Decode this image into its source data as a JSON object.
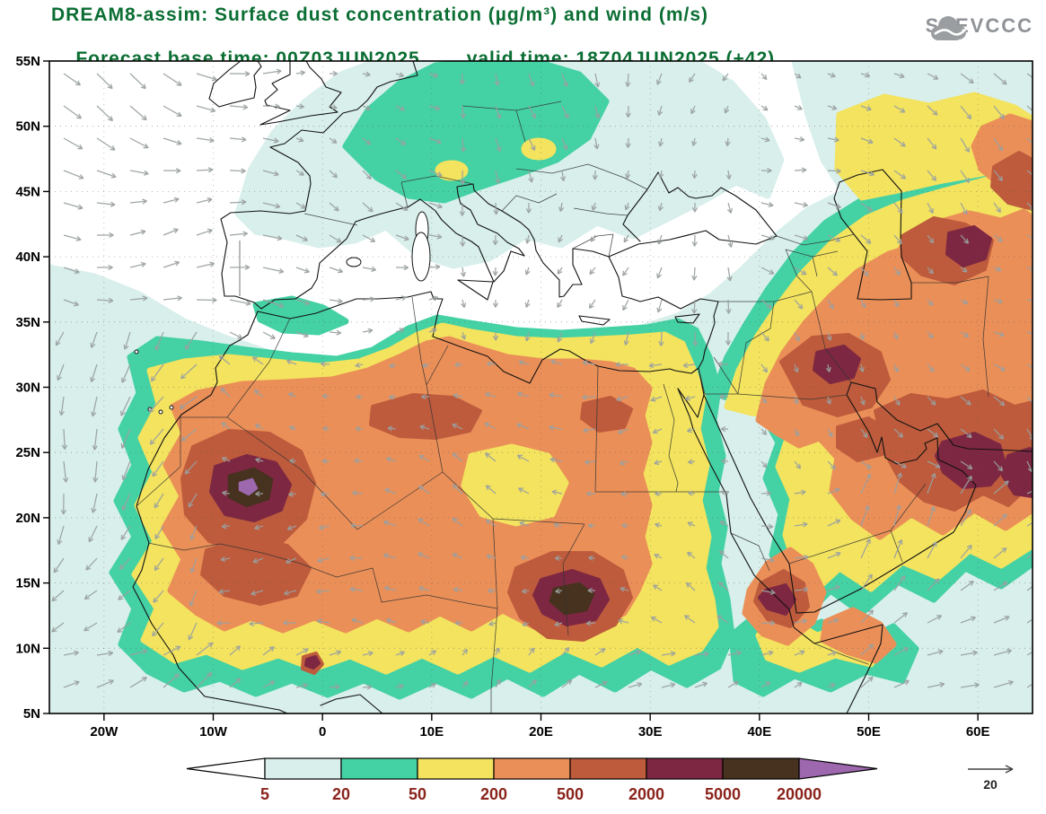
{
  "header": {
    "title": "DREAM8-assim: Surface dust concentration (µg/m³) and wind (m/s)",
    "base_time_label": "Forecast base time: 00Z03JUN2025",
    "valid_time_label": "valid time: 18Z04JUN2025 (+42)",
    "title_color": "#0b6e33"
  },
  "logo": {
    "text": "SEEVCCC"
  },
  "axes": {
    "lat_labels": [
      "55N",
      "50N",
      "45N",
      "40N",
      "35N",
      "30N",
      "25N",
      "20N",
      "15N",
      "10N",
      "5N"
    ],
    "lon_labels": [
      "20W",
      "10W",
      "0",
      "10E",
      "20E",
      "30E",
      "40E",
      "50E",
      "60E"
    ]
  },
  "colorbar": {
    "boundary_labels": [
      "5",
      "20",
      "50",
      "200",
      "500",
      "2000",
      "5000",
      "20000"
    ],
    "cell_colors": [
      "#ffffff",
      "#d8efeb",
      "#44d1a4",
      "#f3e35e",
      "#eb8f58",
      "#bd5b3c",
      "#7d2742",
      "#46321e",
      "#9d68ae"
    ],
    "label_color": "#8b241c"
  },
  "wind_reference": {
    "value": "20"
  },
  "chart_data": {
    "type": "heatmap",
    "title": "DREAM8-assim: Surface dust concentration (µg/m³) and wind (m/s)",
    "model": "DREAM8-assim",
    "variable": "Surface dust concentration",
    "units": "µg/m³",
    "wind_units": "m/s",
    "forecast_base_time": "00Z03JUN2025",
    "valid_time": "18Z04JUN2025",
    "forecast_hour": "+42",
    "lon_range_deg": [
      -25,
      65
    ],
    "lat_range_deg": [
      5,
      55
    ],
    "lat_ticks": [
      "5N",
      "10N",
      "15N",
      "20N",
      "25N",
      "30N",
      "35N",
      "40N",
      "45N",
      "50N",
      "55N"
    ],
    "lon_ticks": [
      "20W",
      "10W",
      "0",
      "10E",
      "20E",
      "30E",
      "40E",
      "50E",
      "60E"
    ],
    "contour_levels_ugm3": [
      5,
      20,
      50,
      200,
      500,
      2000,
      5000,
      20000
    ],
    "wind_reference_ms": 20,
    "legend_position": "bottom",
    "grid": "dotted lat/lon every 5 and 10 degrees",
    "features": [
      {
        "region": "Sahara from Mauritania to W Egypt",
        "level_ugm3": "500-2000 widespread"
      },
      {
        "region": "W Morocco / Western Sahara coast",
        "level_ugm3": "5000-20000 core with local >20000 spot"
      },
      {
        "region": "N Algeria south of Atlas",
        "level_ugm3": "2000-5000 band"
      },
      {
        "region": "S Libya / N Chad",
        "level_ugm3": "5000-20000 core"
      },
      {
        "region": "Syria / W Iraq",
        "level_ugm3": "2000-5000 with 5000-20000 spot"
      },
      {
        "region": "S Iran / Persian Gulf",
        "level_ugm3": "2000-5000 with 5000-20000 cores"
      },
      {
        "region": "Caucasus / SW Caspian",
        "level_ugm3": "2000-5000 patch"
      },
      {
        "region": "S Red Sea / Eritrea coast",
        "level_ugm3": "2000-5000 with 5000-20000 spot"
      },
      {
        "region": "Sahel 8N-13N",
        "level_ugm3": "50-500 band"
      },
      {
        "region": "Central Europe / Alps / Balkans",
        "level_ugm3": "20-200 band"
      },
      {
        "region": "E Atlantic off NW Africa",
        "level_ugm3": "5-50"
      },
      {
        "region": "NW Arabian Sea / Somalia",
        "level_ugm3": "20-500 patches"
      }
    ],
    "wind": {
      "reference_ms": 20,
      "note": "gray vectors; strongest over NE Atlantic and NW Arabian Sea, weak over central Sahara"
    }
  }
}
